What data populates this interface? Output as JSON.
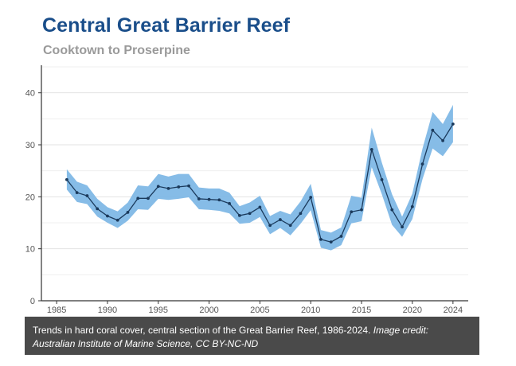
{
  "chart_data": {
    "type": "line",
    "title": "Central Great Barrier Reef",
    "subtitle": "Cooktown to Proserpine",
    "xlabel": "",
    "ylabel": "",
    "xlim": [
      1983.5,
      2025.5
    ],
    "ylim": [
      0,
      45
    ],
    "xticks": [
      1985,
      1990,
      1995,
      2000,
      2005,
      2010,
      2015,
      2020,
      2024
    ],
    "yticks": [
      0,
      10,
      20,
      30,
      40
    ],
    "grid": true,
    "line_color": "#1b3a5c",
    "band_color": "#7fb8e6",
    "series": [
      {
        "name": "Hard coral cover",
        "x": [
          1986,
          1987,
          1988,
          1989,
          1990,
          1991,
          1992,
          1993,
          1994,
          1995,
          1996,
          1997,
          1998,
          1999,
          2000,
          2001,
          2002,
          2003,
          2004,
          2005,
          2006,
          2007,
          2008,
          2009,
          2010,
          2011,
          2012,
          2013,
          2014,
          2015,
          2016,
          2017,
          2018,
          2019,
          2020,
          2021,
          2022,
          2023,
          2024
        ],
        "values": [
          23.3,
          20.8,
          20.2,
          17.7,
          16.3,
          15.5,
          17.0,
          19.7,
          19.7,
          22.0,
          21.6,
          21.9,
          22.1,
          19.6,
          19.5,
          19.4,
          18.7,
          16.4,
          16.8,
          18.0,
          14.5,
          15.6,
          14.5,
          16.8,
          19.9,
          11.8,
          11.3,
          12.4,
          17.1,
          17.5,
          29.1,
          23.3,
          17.5,
          14.2,
          18.1,
          26.3,
          32.8,
          30.8,
          34.0
        ],
        "lower": [
          21.4,
          19.0,
          18.6,
          16.2,
          15.0,
          14.0,
          15.4,
          17.6,
          17.5,
          19.6,
          19.4,
          19.6,
          19.9,
          17.6,
          17.5,
          17.3,
          16.8,
          14.8,
          15.0,
          16.1,
          12.8,
          14.0,
          12.6,
          14.8,
          17.4,
          10.2,
          9.7,
          10.7,
          14.9,
          15.3,
          25.7,
          20.5,
          14.6,
          12.3,
          15.7,
          23.4,
          29.3,
          27.8,
          30.5
        ],
        "upper": [
          25.3,
          22.9,
          22.2,
          19.6,
          18.0,
          17.2,
          18.9,
          22.2,
          22.0,
          24.4,
          23.9,
          24.4,
          24.4,
          21.8,
          21.6,
          21.6,
          20.8,
          18.2,
          18.9,
          20.2,
          16.3,
          17.3,
          16.6,
          19.1,
          22.5,
          13.6,
          13.1,
          14.1,
          20.2,
          19.8,
          33.3,
          26.6,
          20.5,
          16.2,
          20.6,
          29.3,
          36.3,
          34.0,
          37.7
        ]
      }
    ]
  },
  "caption": {
    "text": "Trends in hard coral cover, central section of the Great Barrier Reef, 1986-2024. ",
    "credit": "Image credit: Australian Institute of Marine Science, CC BY-NC-ND"
  }
}
